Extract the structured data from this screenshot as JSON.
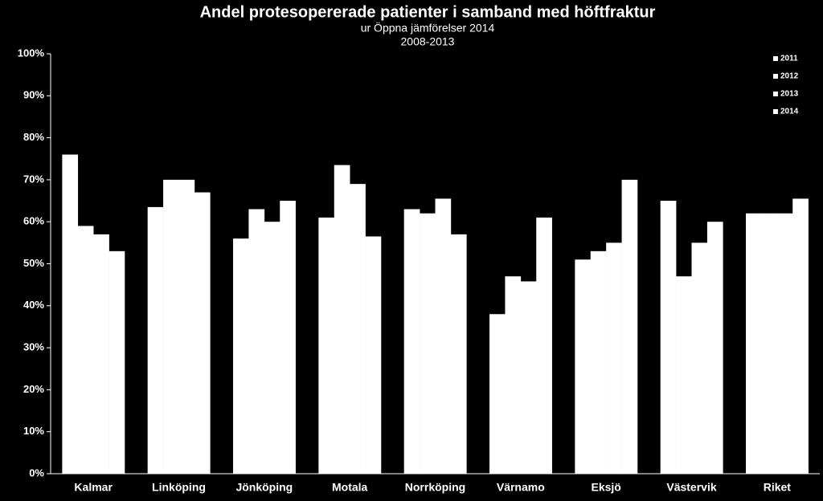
{
  "chart_data": {
    "type": "bar",
    "title": "Andel protesopererade patienter i samband med höftfraktur",
    "subtitle_lines": [
      "ur Öppna jämförelser 2014",
      "2008-2013"
    ],
    "categories": [
      "Kalmar",
      "Linköping",
      "Jönköping",
      "Motala",
      "Norrköping",
      "Värnamo",
      "Eksjö",
      "Västervik",
      "Riket"
    ],
    "series": [
      {
        "name": "2011",
        "color": "#ffffff",
        "values": [
          76,
          63.5,
          56,
          61,
          63,
          38,
          51,
          65,
          62
        ]
      },
      {
        "name": "2012",
        "color": "#ffffff",
        "values": [
          59,
          70,
          63,
          73.5,
          62,
          47,
          53,
          47,
          62
        ]
      },
      {
        "name": "2013",
        "color": "#ffffff",
        "values": [
          57,
          70,
          60,
          69,
          65.5,
          45.8,
          55,
          55,
          62
        ]
      },
      {
        "name": "2014",
        "color": "#ffffff",
        "values": [
          53,
          67,
          65,
          56.5,
          57,
          61,
          70,
          60,
          65.5
        ]
      }
    ],
    "ylim": [
      0,
      100
    ],
    "yticks": [
      {
        "value": 0,
        "label": "0%"
      },
      {
        "value": 10,
        "label": "10%"
      },
      {
        "value": 20,
        "label": "20%"
      },
      {
        "value": 30,
        "label": "30%"
      },
      {
        "value": 40,
        "label": "40%"
      },
      {
        "value": 50,
        "label": "50%"
      },
      {
        "value": 60,
        "label": "60%"
      },
      {
        "value": 70,
        "label": "70%"
      },
      {
        "value": 80,
        "label": "80%"
      },
      {
        "value": 90,
        "label": "90%"
      },
      {
        "value": 100,
        "label": "100%"
      }
    ],
    "grid": false,
    "legend": "top-right"
  }
}
